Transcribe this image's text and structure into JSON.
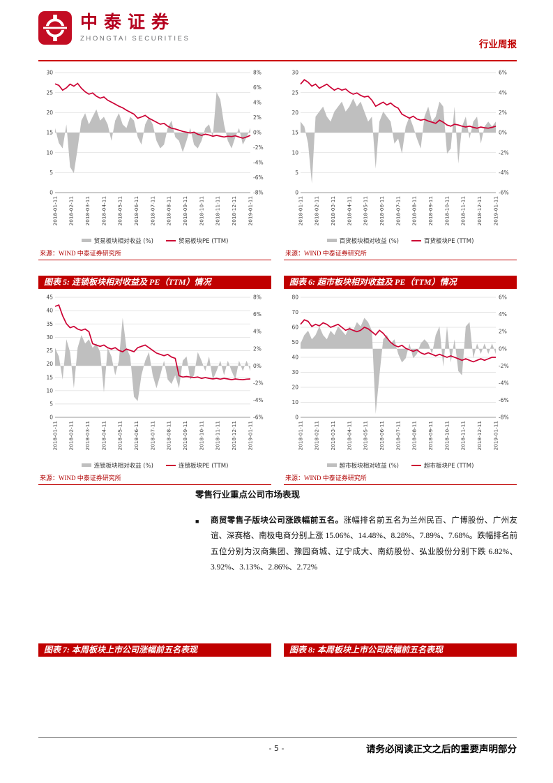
{
  "header": {
    "brand_cn": "中泰证券",
    "brand_en": "ZHONGTAI SECURITIES",
    "doc_type": "行业周报"
  },
  "colors": {
    "accent_red": "#c00000",
    "line_red": "#cc0033",
    "area_gray": "#bfbfbf"
  },
  "figures": {
    "fig5": "图表 5: 连锁板块相对收益及 PE（TTM）情况",
    "fig6": "图表 6: 超市板块相对收益及 PE（TTM）情况",
    "fig7": "图表 7: 本周板块上市公司涨幅前五名表现",
    "fig8": "图表 8: 本周板块上市公司跌幅前五名表现"
  },
  "chart_data": [
    {
      "type": "line",
      "source": "来源：WIND 中泰证券研究所",
      "left_axis": {
        "min": 0,
        "max": 30,
        "step": 5
      },
      "right_axis": {
        "min": -8,
        "max": 8,
        "step": 2
      },
      "x_labels": [
        "2018-01-11",
        "2018-02-11",
        "2018-03-11",
        "2018-04-11",
        "2018-05-11",
        "2018-06-11",
        "2018-07-11",
        "2018-08-11",
        "2018-09-11",
        "2018-10-11",
        "2018-11-11",
        "2018-12-11",
        "2019-01-11"
      ],
      "series": [
        {
          "name": "贸易板块相对收益 (%)",
          "type": "area",
          "axis": "right",
          "values": [
            0.6,
            -1.4,
            -2.1,
            1.1,
            -4.6,
            -5.4,
            -2.1,
            1.6,
            2.6,
            1.1,
            2.1,
            3.1,
            1.6,
            2.1,
            1.1,
            -1.1,
            1.6,
            2.6,
            1.1,
            0.6,
            2.1,
            1.6,
            -0.6,
            -1.6,
            1.1,
            2.1,
            1.1,
            -1.1,
            -2.1,
            -1.6,
            0.6,
            1.6,
            -0.6,
            -1.1,
            -2.6,
            -1.1,
            0.6,
            -1.6,
            -2.1,
            -1.1,
            0.6,
            1.1,
            -0.6,
            5.4,
            4.4,
            1.1,
            -1.1,
            -2.1,
            -0.6,
            0.6,
            -1.6,
            -0.6,
            0.6
          ]
        },
        {
          "name": "贸易板块PE (TTM)",
          "type": "line",
          "axis": "left",
          "values": [
            27.2,
            26.8,
            25.6,
            26.2,
            27.1,
            26.6,
            27.3,
            26.1,
            25.2,
            24.6,
            24.9,
            24.1,
            23.6,
            23.9,
            23.1,
            22.6,
            22.1,
            21.6,
            21.2,
            20.6,
            20.1,
            19.6,
            18.6,
            18.9,
            19.3,
            18.6,
            18.1,
            17.6,
            17.1,
            17.3,
            16.6,
            16.1,
            15.9,
            15.6,
            15.3,
            15.1,
            14.9,
            15.1,
            14.6,
            14.3,
            14.6,
            14.4,
            14.1,
            14.3,
            14.1,
            13.9,
            14.1,
            14.0,
            14.2,
            13.9,
            13.6,
            13.9,
            14.3
          ]
        }
      ]
    },
    {
      "type": "line",
      "source": "来源：WIND 中泰证券研究所",
      "left_axis": {
        "min": 0,
        "max": 30,
        "step": 5
      },
      "right_axis": {
        "min": -6,
        "max": 6,
        "step": 2
      },
      "x_labels": [
        "2018-01-11",
        "2018-02-11",
        "2018-03-11",
        "2018-04-11",
        "2018-05-11",
        "2018-06-11",
        "2018-07-11",
        "2018-08-11",
        "2018-09-11",
        "2018-10-11",
        "2018-11-11",
        "2018-12-11",
        "2019-01-11"
      ],
      "series": [
        {
          "name": "百货板块相对收益 (%)",
          "type": "area",
          "axis": "right",
          "values": [
            1.1,
            0.6,
            -1.1,
            -5.1,
            1.6,
            2.1,
            2.6,
            1.6,
            1.1,
            2.1,
            2.6,
            3.1,
            2.1,
            2.6,
            3.4,
            2.6,
            3.1,
            2.1,
            1.1,
            1.6,
            -3.6,
            1.1,
            2.1,
            1.6,
            1.1,
            -1.1,
            -0.6,
            -2.1,
            0.6,
            1.6,
            0.6,
            -0.6,
            -1.6,
            1.6,
            2.6,
            1.1,
            1.6,
            3.1,
            2.6,
            -2.1,
            -1.6,
            2.6,
            -3.1,
            0.6,
            1.6,
            -0.6,
            1.1,
            1.6,
            -1.1,
            0.6,
            1.1,
            0.6,
            1.1
          ]
        },
        {
          "name": "百货板块PE (TTM)",
          "type": "line",
          "axis": "left",
          "values": [
            27.1,
            28.2,
            27.6,
            26.6,
            27.1,
            26.1,
            26.6,
            27.1,
            26.3,
            25.6,
            26.1,
            25.6,
            25.9,
            25.1,
            24.6,
            24.9,
            24.3,
            23.9,
            24.1,
            23.1,
            21.6,
            22.1,
            22.6,
            21.9,
            22.4,
            21.6,
            21.1,
            19.6,
            19.1,
            18.6,
            19.1,
            18.4,
            18.1,
            18.3,
            17.9,
            17.6,
            17.3,
            18.1,
            17.6,
            16.9,
            16.6,
            17.1,
            16.9,
            16.6,
            16.4,
            16.6,
            16.3,
            16.1,
            16.4,
            16.2,
            16.1,
            16.3,
            16.6
          ]
        }
      ]
    },
    {
      "type": "line",
      "source": "来源：WIND 中泰证券研究所",
      "left_axis": {
        "min": 0,
        "max": 45,
        "step": 5
      },
      "right_axis": {
        "min": -6,
        "max": 8,
        "step": 2
      },
      "x_labels": [
        "2018-01-11",
        "2018-02-11",
        "2018-03-11",
        "2018-04-11",
        "2018-05-11",
        "2018-06-11",
        "2018-07-11",
        "2018-08-11",
        "2018-09-11",
        "2018-10-11",
        "2018-11-11",
        "2018-12-11",
        "2019-01-11"
      ],
      "series": [
        {
          "name": "连锁板块相对收益 (%)",
          "type": "area",
          "axis": "right",
          "values": [
            2.1,
            1.1,
            -1.6,
            3.1,
            1.6,
            -2.6,
            2.1,
            3.6,
            2.6,
            3.1,
            2.1,
            2.6,
            1.6,
            -3.1,
            2.1,
            1.1,
            -1.1,
            0.6,
            5.6,
            2.1,
            1.1,
            -3.6,
            -4.1,
            -1.1,
            0.6,
            1.6,
            -1.1,
            -2.6,
            -1.1,
            0.6,
            -1.6,
            -2.1,
            -1.1,
            -2.6,
            0.6,
            1.1,
            -1.6,
            -1.1,
            1.6,
            0.6,
            -0.6,
            1.1,
            -1.6,
            -0.6,
            0.6,
            -1.1,
            0.6,
            -0.6,
            -1.6,
            0.6,
            -0.6,
            0.6,
            -0.6
          ]
        },
        {
          "name": "连锁板块PE (TTM)",
          "type": "line",
          "axis": "left",
          "values": [
            41.6,
            42.1,
            38.1,
            35.1,
            33.6,
            34.1,
            33.1,
            32.6,
            33.1,
            32.1,
            27.6,
            27.1,
            26.6,
            27.1,
            26.1,
            25.6,
            26.1,
            25.1,
            24.6,
            25.6,
            25.1,
            24.6,
            26.1,
            26.6,
            27.1,
            26.1,
            25.1,
            24.1,
            23.6,
            23.1,
            23.6,
            22.6,
            22.1,
            15.6,
            15.1,
            15.3,
            15.1,
            14.9,
            15.1,
            14.6,
            14.9,
            14.6,
            14.4,
            14.6,
            14.3,
            14.6,
            14.4,
            14.1,
            14.4,
            14.2,
            14.1,
            14.3,
            14.4
          ]
        }
      ]
    },
    {
      "type": "line",
      "source": "来源：WIND 中泰证券研究所",
      "left_axis": {
        "min": 0,
        "max": 80,
        "step": 10
      },
      "right_axis": {
        "min": -8,
        "max": 6,
        "step": 2
      },
      "x_labels": [
        "2018-01-11",
        "2018-02-11",
        "2018-03-11",
        "2018-04-11",
        "2018-05-11",
        "2018-06-11",
        "2018-07-11",
        "2018-08-11",
        "2018-09-11",
        "2018-10-11",
        "2018-11-11",
        "2018-12-11",
        "2019-01-11"
      ],
      "series": [
        {
          "name": "超市板块相对收益 (%)",
          "type": "area",
          "axis": "right",
          "values": [
            0.6,
            1.6,
            2.1,
            1.1,
            1.6,
            2.6,
            1.6,
            1.1,
            2.1,
            1.6,
            2.6,
            2.1,
            1.6,
            2.6,
            2.1,
            3.1,
            2.6,
            3.6,
            3.1,
            2.1,
            -7.6,
            -3.1,
            1.1,
            1.6,
            0.6,
            1.1,
            -0.6,
            -1.6,
            -1.1,
            0.6,
            -1.1,
            -0.6,
            0.6,
            1.1,
            0.6,
            -0.6,
            1.6,
            2.6,
            -2.1,
            2.6,
            -1.6,
            1.1,
            -2.6,
            -3.1,
            2.6,
            3.1,
            -1.1,
            0.6,
            -0.6,
            0.6,
            -0.6,
            0.6,
            -0.6
          ]
        },
        {
          "name": "超市板块PE (TTM)",
          "type": "line",
          "axis": "left",
          "values": [
            62,
            65,
            64,
            60.5,
            62,
            61,
            63,
            62,
            60,
            61,
            62,
            60,
            58,
            59,
            58,
            57,
            58,
            60,
            59,
            57,
            55,
            58,
            56,
            53,
            50,
            48,
            47,
            48,
            46,
            45,
            44,
            45,
            43,
            42,
            43,
            42,
            41,
            42,
            41,
            40,
            41,
            40,
            39,
            38,
            39,
            38,
            37,
            38,
            39,
            38,
            39,
            40,
            40
          ]
        }
      ]
    }
  ],
  "body": {
    "heading": "零售行业重点公司市场表现",
    "bullet": "■",
    "lead_bold": "商贸零售子版块公司涨跌幅前五名。",
    "text": "涨幅排名前五名为兰州民百、广博股份、广州友谊、深赛格、南极电商分别上涨 15.06%、14.48%、8.28%、7.89%、7.68%。跌幅排名前五位分别为汉商集团、豫园商城、辽宁成大、南纺股份、弘业股份分别下跌 6.82%、3.92%、3.13%、2.86%、2.72%"
  },
  "footer": {
    "page_number": "- 5 -",
    "disclaimer": "请务必阅读正文之后的重要声明部分"
  }
}
